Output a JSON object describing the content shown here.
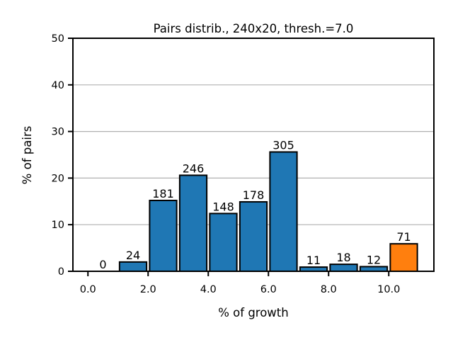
{
  "chart_data": {
    "type": "bar",
    "title": "Pairs distrib., 240x20, thresh.=7.0",
    "xlabel": "% of growth",
    "ylabel": "% of pairs",
    "xlim": [
      -0.5,
      11.5
    ],
    "ylim": [
      0,
      50
    ],
    "x_ticks": [
      0,
      2,
      4,
      6,
      8,
      10
    ],
    "x_tick_labels": [
      "0.0",
      "2.0",
      "4.0",
      "6.0",
      "8.0",
      "10.0"
    ],
    "y_ticks": [
      0,
      10,
      20,
      30,
      40,
      50
    ],
    "y_tick_labels": [
      "0",
      "10",
      "20",
      "30",
      "40",
      "50"
    ],
    "grid": "horizontal",
    "bars": [
      {
        "x": 0.5,
        "value": 0.0,
        "label": "0",
        "color": "#1f77b4"
      },
      {
        "x": 1.5,
        "value": 2.0,
        "label": "24",
        "color": "#1f77b4"
      },
      {
        "x": 2.5,
        "value": 15.2,
        "label": "181",
        "color": "#1f77b4"
      },
      {
        "x": 3.5,
        "value": 20.6,
        "label": "246",
        "color": "#1f77b4"
      },
      {
        "x": 4.5,
        "value": 12.4,
        "label": "148",
        "color": "#1f77b4"
      },
      {
        "x": 5.5,
        "value": 14.9,
        "label": "178",
        "color": "#1f77b4"
      },
      {
        "x": 6.5,
        "value": 25.6,
        "label": "305",
        "color": "#1f77b4"
      },
      {
        "x": 7.5,
        "value": 0.9,
        "label": "11",
        "color": "#1f77b4"
      },
      {
        "x": 8.5,
        "value": 1.5,
        "label": "18",
        "color": "#1f77b4"
      },
      {
        "x": 9.5,
        "value": 1.0,
        "label": "12",
        "color": "#1f77b4"
      },
      {
        "x": 10.5,
        "value": 5.9,
        "label": "71",
        "color": "#ff7f0e"
      }
    ],
    "bar_width": 0.9
  }
}
